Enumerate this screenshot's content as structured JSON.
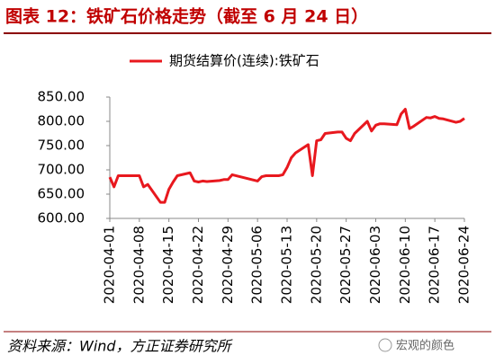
{
  "chart_data": {
    "type": "line",
    "title": "图表 12：铁矿石价格走势（截至 6 月 24 日）",
    "source": "资料来源：Wind，方正证券研究所",
    "watermark": "宏观的颜色",
    "x": [
      "2020-04-01",
      "2020-04-02",
      "2020-04-03",
      "2020-04-07",
      "2020-04-08",
      "2020-04-09",
      "2020-04-10",
      "2020-04-13",
      "2020-04-14",
      "2020-04-15",
      "2020-04-16",
      "2020-04-17",
      "2020-04-20",
      "2020-04-21",
      "2020-04-22",
      "2020-04-23",
      "2020-04-24",
      "2020-04-27",
      "2020-04-28",
      "2020-04-29",
      "2020-04-30",
      "2020-05-06",
      "2020-05-07",
      "2020-05-08",
      "2020-05-11",
      "2020-05-12",
      "2020-05-13",
      "2020-05-14",
      "2020-05-15",
      "2020-05-18",
      "2020-05-19",
      "2020-05-20",
      "2020-05-21",
      "2020-05-22",
      "2020-05-25",
      "2020-05-26",
      "2020-05-27",
      "2020-05-28",
      "2020-05-29",
      "2020-06-01",
      "2020-06-02",
      "2020-06-03",
      "2020-06-04",
      "2020-06-05",
      "2020-06-08",
      "2020-06-09",
      "2020-06-10",
      "2020-06-11",
      "2020-06-12",
      "2020-06-15",
      "2020-06-16",
      "2020-06-17",
      "2020-06-18",
      "2020-06-19",
      "2020-06-22",
      "2020-06-23",
      "2020-06-24"
    ],
    "series": [
      {
        "name": "期货结算价(连续):铁矿石",
        "color": "#e8181e",
        "values": [
          685,
          665,
          688,
          688,
          688,
          665,
          670,
          633,
          633,
          660,
          675,
          688,
          694,
          677,
          675,
          677,
          676,
          678,
          680,
          680,
          690,
          677,
          686,
          688,
          688,
          690,
          705,
          725,
          735,
          752,
          688,
          760,
          762,
          775,
          778,
          778,
          765,
          760,
          775,
          800,
          780,
          792,
          795,
          795,
          793,
          815,
          825,
          785,
          790,
          808,
          807,
          810,
          806,
          805,
          798,
          800,
          806
        ]
      }
    ],
    "xlim": [
      "2020-04-01",
      "2020-06-24"
    ],
    "xticks": [
      "2020-04-01",
      "2020-04-08",
      "2020-04-15",
      "2020-04-22",
      "2020-04-29",
      "2020-05-06",
      "2020-05-13",
      "2020-05-20",
      "2020-05-27",
      "2020-06-03",
      "2020-06-10",
      "2020-06-17",
      "2020-06-24"
    ],
    "ylim": [
      600,
      850
    ],
    "yticks": [
      {
        "value": 600,
        "label": "600.00"
      },
      {
        "value": 650,
        "label": "650.00"
      },
      {
        "value": 700,
        "label": "700.00"
      },
      {
        "value": 750,
        "label": "750.00"
      },
      {
        "value": 800,
        "label": "800.00"
      },
      {
        "value": 850,
        "label": "850.00"
      }
    ],
    "grid": false
  }
}
